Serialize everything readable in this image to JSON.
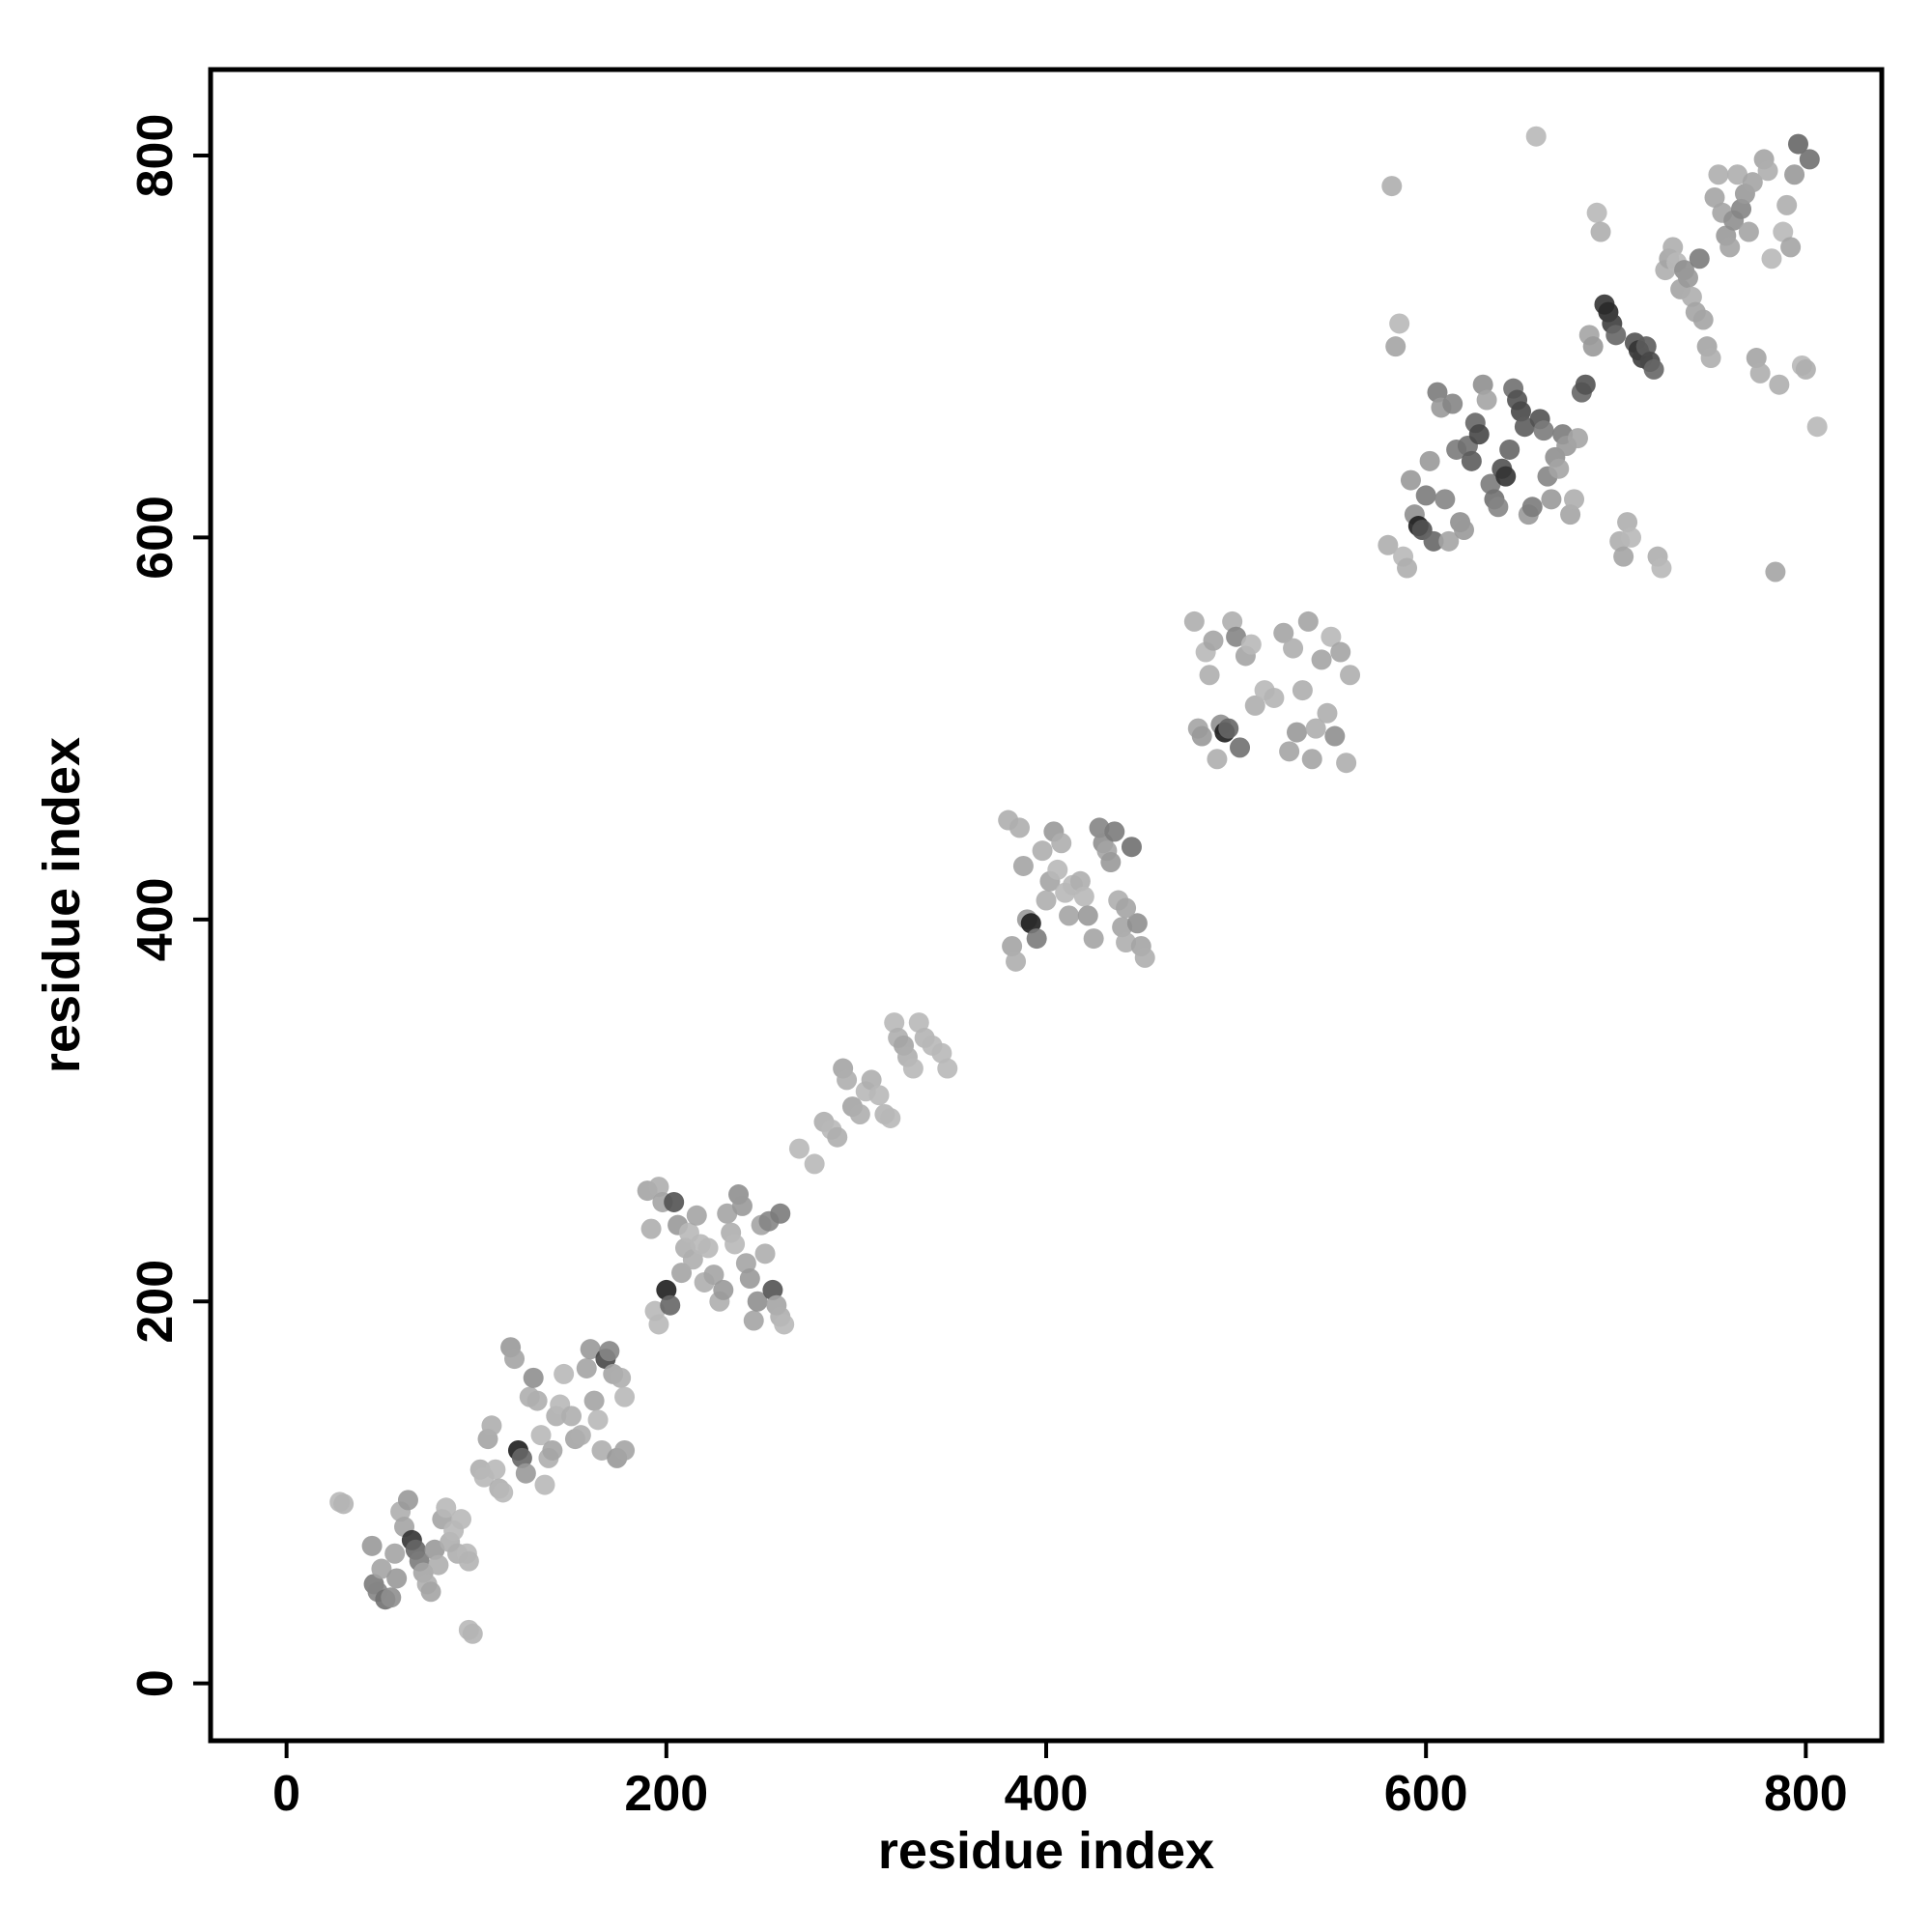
{
  "chart_data": {
    "type": "scatter",
    "title": "",
    "xlabel": "residue index",
    "ylabel": "residue index",
    "xlim": [
      -40,
      840
    ],
    "ylim": [
      -30,
      845
    ],
    "x_ticks": [
      0,
      200,
      400,
      600,
      800
    ],
    "y_ticks": [
      0,
      200,
      400,
      600,
      800
    ],
    "x_tick_labels": [
      "0",
      "200",
      "400",
      "600",
      "800"
    ],
    "y_tick_labels": [
      "0",
      "200",
      "400",
      "600",
      "800"
    ],
    "grid": false,
    "legend": "none",
    "marker": "filled-circle",
    "shade_scale": "grayscale; lighter = lower value, darker = higher value",
    "points": [
      [
        28,
        95,
        0.2
      ],
      [
        30,
        94,
        0.22
      ],
      [
        45,
        72,
        0.35
      ],
      [
        46,
        52,
        0.5
      ],
      [
        48,
        48,
        0.45
      ],
      [
        50,
        60,
        0.3
      ],
      [
        52,
        44,
        0.55
      ],
      [
        55,
        45,
        0.4
      ],
      [
        57,
        68,
        0.3
      ],
      [
        58,
        55,
        0.35
      ],
      [
        60,
        90,
        0.25
      ],
      [
        62,
        82,
        0.3
      ],
      [
        64,
        96,
        0.35
      ],
      [
        66,
        75,
        0.85
      ],
      [
        68,
        70,
        0.6
      ],
      [
        70,
        64,
        0.5
      ],
      [
        72,
        58,
        0.3
      ],
      [
        74,
        52,
        0.25
      ],
      [
        76,
        48,
        0.3
      ],
      [
        78,
        70,
        0.35
      ],
      [
        80,
        62,
        0.25
      ],
      [
        82,
        86,
        0.3
      ],
      [
        84,
        92,
        0.2
      ],
      [
        86,
        74,
        0.25
      ],
      [
        88,
        80,
        0.2
      ],
      [
        90,
        68,
        0.25
      ],
      [
        92,
        86,
        0.2
      ],
      [
        95,
        68,
        0.2
      ],
      [
        96,
        64,
        0.22
      ],
      [
        96,
        28,
        0.2
      ],
      [
        98,
        26,
        0.22
      ],
      [
        102,
        112,
        0.25
      ],
      [
        104,
        108,
        0.2
      ],
      [
        106,
        128,
        0.3
      ],
      [
        108,
        135,
        0.25
      ],
      [
        110,
        112,
        0.2
      ],
      [
        112,
        102,
        0.25
      ],
      [
        114,
        100,
        0.2
      ],
      [
        118,
        176,
        0.35
      ],
      [
        120,
        170,
        0.3
      ],
      [
        122,
        122,
        0.95
      ],
      [
        124,
        118,
        0.6
      ],
      [
        126,
        110,
        0.35
      ],
      [
        128,
        150,
        0.25
      ],
      [
        130,
        160,
        0.4
      ],
      [
        132,
        148,
        0.25
      ],
      [
        134,
        130,
        0.2
      ],
      [
        136,
        104,
        0.2
      ],
      [
        138,
        118,
        0.25
      ],
      [
        140,
        122,
        0.3
      ],
      [
        142,
        140,
        0.25
      ],
      [
        144,
        146,
        0.2
      ],
      [
        146,
        162,
        0.2
      ],
      [
        150,
        140,
        0.25
      ],
      [
        152,
        128,
        0.3
      ],
      [
        155,
        130,
        0.25
      ],
      [
        158,
        165,
        0.3
      ],
      [
        160,
        175,
        0.35
      ],
      [
        162,
        148,
        0.3
      ],
      [
        164,
        138,
        0.2
      ],
      [
        166,
        122,
        0.25
      ],
      [
        168,
        170,
        0.75
      ],
      [
        170,
        174,
        0.45
      ],
      [
        172,
        162,
        0.3
      ],
      [
        174,
        118,
        0.35
      ],
      [
        176,
        160,
        0.25
      ],
      [
        178,
        150,
        0.2
      ],
      [
        178,
        122,
        0.3
      ],
      [
        190,
        258,
        0.3
      ],
      [
        192,
        238,
        0.25
      ],
      [
        194,
        195,
        0.2
      ],
      [
        196,
        260,
        0.25
      ],
      [
        198,
        252,
        0.3
      ],
      [
        200,
        206,
        0.95
      ],
      [
        202,
        198,
        0.6
      ],
      [
        204,
        252,
        0.7
      ],
      [
        206,
        240,
        0.35
      ],
      [
        208,
        215,
        0.3
      ],
      [
        210,
        228,
        0.25
      ],
      [
        212,
        236,
        0.2
      ],
      [
        214,
        222,
        0.25
      ],
      [
        216,
        245,
        0.3
      ],
      [
        218,
        230,
        0.2
      ],
      [
        220,
        210,
        0.25
      ],
      [
        222,
        228,
        0.2
      ],
      [
        225,
        214,
        0.3
      ],
      [
        228,
        200,
        0.25
      ],
      [
        230,
        206,
        0.35
      ],
      [
        232,
        246,
        0.3
      ],
      [
        234,
        236,
        0.25
      ],
      [
        236,
        230,
        0.2
      ],
      [
        238,
        256,
        0.4
      ],
      [
        240,
        250,
        0.35
      ],
      [
        242,
        220,
        0.3
      ],
      [
        244,
        212,
        0.35
      ],
      [
        246,
        190,
        0.3
      ],
      [
        248,
        200,
        0.4
      ],
      [
        250,
        240,
        0.3
      ],
      [
        252,
        225,
        0.25
      ],
      [
        254,
        242,
        0.45
      ],
      [
        256,
        206,
        0.7
      ],
      [
        258,
        198,
        0.3
      ],
      [
        260,
        192,
        0.25
      ],
      [
        262,
        188,
        0.2
      ],
      [
        260,
        246,
        0.5
      ],
      [
        196,
        188,
        0.2
      ],
      [
        270,
        280,
        0.2
      ],
      [
        278,
        272,
        0.2
      ],
      [
        283,
        294,
        0.25
      ],
      [
        287,
        290,
        0.2
      ],
      [
        290,
        286,
        0.25
      ],
      [
        293,
        322,
        0.3
      ],
      [
        295,
        316,
        0.25
      ],
      [
        298,
        302,
        0.3
      ],
      [
        302,
        298,
        0.25
      ],
      [
        305,
        310,
        0.2
      ],
      [
        308,
        316,
        0.25
      ],
      [
        312,
        308,
        0.2
      ],
      [
        315,
        298,
        0.22
      ],
      [
        318,
        296,
        0.2
      ],
      [
        320,
        346,
        0.2
      ],
      [
        322,
        338,
        0.25
      ],
      [
        325,
        334,
        0.3
      ],
      [
        327,
        328,
        0.25
      ],
      [
        330,
        322,
        0.2
      ],
      [
        333,
        346,
        0.2
      ],
      [
        336,
        338,
        0.22
      ],
      [
        340,
        334,
        0.2
      ],
      [
        345,
        330,
        0.2
      ],
      [
        348,
        322,
        0.2
      ],
      [
        380,
        452,
        0.25
      ],
      [
        382,
        386,
        0.3
      ],
      [
        384,
        378,
        0.25
      ],
      [
        386,
        448,
        0.25
      ],
      [
        388,
        428,
        0.3
      ],
      [
        390,
        400,
        0.35
      ],
      [
        392,
        398,
        0.95
      ],
      [
        395,
        390,
        0.5
      ],
      [
        398,
        436,
        0.25
      ],
      [
        400,
        410,
        0.25
      ],
      [
        402,
        420,
        0.3
      ],
      [
        404,
        446,
        0.35
      ],
      [
        406,
        426,
        0.2
      ],
      [
        408,
        440,
        0.25
      ],
      [
        410,
        414,
        0.2
      ],
      [
        412,
        402,
        0.3
      ],
      [
        414,
        418,
        0.2
      ],
      [
        418,
        420,
        0.25
      ],
      [
        420,
        412,
        0.2
      ],
      [
        422,
        402,
        0.35
      ],
      [
        425,
        390,
        0.3
      ],
      [
        428,
        448,
        0.45
      ],
      [
        430,
        440,
        0.4
      ],
      [
        432,
        436,
        0.3
      ],
      [
        434,
        430,
        0.35
      ],
      [
        436,
        446,
        0.5
      ],
      [
        438,
        410,
        0.25
      ],
      [
        440,
        396,
        0.3
      ],
      [
        442,
        388,
        0.25
      ],
      [
        445,
        438,
        0.55
      ],
      [
        448,
        398,
        0.4
      ],
      [
        450,
        386,
        0.3
      ],
      [
        452,
        380,
        0.25
      ],
      [
        442,
        406,
        0.3
      ],
      [
        478,
        556,
        0.25
      ],
      [
        480,
        500,
        0.3
      ],
      [
        482,
        496,
        0.35
      ],
      [
        484,
        540,
        0.2
      ],
      [
        486,
        528,
        0.25
      ],
      [
        488,
        546,
        0.3
      ],
      [
        490,
        484,
        0.25
      ],
      [
        492,
        502,
        0.4
      ],
      [
        494,
        498,
        0.95
      ],
      [
        496,
        500,
        0.6
      ],
      [
        498,
        556,
        0.25
      ],
      [
        500,
        548,
        0.45
      ],
      [
        502,
        490,
        0.55
      ],
      [
        505,
        538,
        0.3
      ],
      [
        508,
        544,
        0.2
      ],
      [
        510,
        512,
        0.25
      ],
      [
        515,
        520,
        0.2
      ],
      [
        520,
        516,
        0.22
      ],
      [
        525,
        550,
        0.3
      ],
      [
        528,
        488,
        0.3
      ],
      [
        530,
        542,
        0.25
      ],
      [
        532,
        498,
        0.35
      ],
      [
        535,
        520,
        0.25
      ],
      [
        538,
        556,
        0.3
      ],
      [
        540,
        484,
        0.3
      ],
      [
        542,
        500,
        0.25
      ],
      [
        545,
        536,
        0.3
      ],
      [
        548,
        508,
        0.25
      ],
      [
        550,
        548,
        0.2
      ],
      [
        552,
        496,
        0.4
      ],
      [
        555,
        540,
        0.3
      ],
      [
        558,
        482,
        0.25
      ],
      [
        560,
        528,
        0.25
      ],
      [
        580,
        596,
        0.25
      ],
      [
        582,
        784,
        0.25
      ],
      [
        584,
        700,
        0.3
      ],
      [
        586,
        712,
        0.2
      ],
      [
        588,
        590,
        0.2
      ],
      [
        590,
        584,
        0.25
      ],
      [
        592,
        630,
        0.35
      ],
      [
        594,
        612,
        0.4
      ],
      [
        596,
        606,
        0.95
      ],
      [
        598,
        604,
        0.7
      ],
      [
        600,
        622,
        0.5
      ],
      [
        602,
        640,
        0.35
      ],
      [
        604,
        598,
        0.6
      ],
      [
        606,
        676,
        0.5
      ],
      [
        608,
        668,
        0.35
      ],
      [
        610,
        620,
        0.45
      ],
      [
        612,
        598,
        0.3
      ],
      [
        614,
        670,
        0.45
      ],
      [
        616,
        646,
        0.5
      ],
      [
        618,
        608,
        0.4
      ],
      [
        620,
        604,
        0.35
      ],
      [
        622,
        648,
        0.55
      ],
      [
        624,
        640,
        0.65
      ],
      [
        626,
        660,
        0.6
      ],
      [
        628,
        654,
        0.75
      ],
      [
        630,
        680,
        0.4
      ],
      [
        632,
        672,
        0.3
      ],
      [
        634,
        628,
        0.5
      ],
      [
        636,
        620,
        0.55
      ],
      [
        638,
        616,
        0.45
      ],
      [
        640,
        636,
        0.7
      ],
      [
        642,
        632,
        0.85
      ],
      [
        644,
        646,
        0.6
      ],
      [
        646,
        678,
        0.55
      ],
      [
        648,
        672,
        0.7
      ],
      [
        650,
        666,
        0.75
      ],
      [
        652,
        658,
        0.65
      ],
      [
        654,
        612,
        0.35
      ],
      [
        656,
        616,
        0.5
      ],
      [
        658,
        810,
        0.2
      ],
      [
        660,
        662,
        0.7
      ],
      [
        662,
        656,
        0.5
      ],
      [
        664,
        632,
        0.45
      ],
      [
        666,
        620,
        0.35
      ],
      [
        668,
        642,
        0.4
      ],
      [
        670,
        636,
        0.3
      ],
      [
        672,
        654,
        0.5
      ],
      [
        674,
        648,
        0.35
      ],
      [
        676,
        612,
        0.3
      ],
      [
        678,
        620,
        0.25
      ],
      [
        680,
        652,
        0.3
      ],
      [
        682,
        676,
        0.6
      ],
      [
        684,
        680,
        0.7
      ],
      [
        686,
        706,
        0.3
      ],
      [
        688,
        700,
        0.35
      ],
      [
        690,
        770,
        0.2
      ],
      [
        692,
        760,
        0.25
      ],
      [
        694,
        722,
        0.85
      ],
      [
        696,
        718,
        0.9
      ],
      [
        698,
        712,
        0.8
      ],
      [
        700,
        706,
        0.6
      ],
      [
        702,
        598,
        0.25
      ],
      [
        704,
        590,
        0.3
      ],
      [
        706,
        608,
        0.25
      ],
      [
        708,
        600,
        0.2
      ],
      [
        710,
        702,
        0.7
      ],
      [
        712,
        698,
        0.85
      ],
      [
        714,
        694,
        0.8
      ],
      [
        716,
        700,
        0.65
      ],
      [
        718,
        692,
        0.75
      ],
      [
        720,
        688,
        0.6
      ],
      [
        722,
        590,
        0.25
      ],
      [
        724,
        584,
        0.2
      ],
      [
        726,
        740,
        0.25
      ],
      [
        728,
        746,
        0.3
      ],
      [
        730,
        752,
        0.25
      ],
      [
        732,
        744,
        0.2
      ],
      [
        734,
        730,
        0.3
      ],
      [
        736,
        740,
        0.4
      ],
      [
        738,
        736,
        0.35
      ],
      [
        740,
        726,
        0.25
      ],
      [
        742,
        718,
        0.3
      ],
      [
        744,
        746,
        0.5
      ],
      [
        746,
        714,
        0.3
      ],
      [
        748,
        700,
        0.3
      ],
      [
        750,
        694,
        0.25
      ],
      [
        752,
        778,
        0.3
      ],
      [
        754,
        790,
        0.25
      ],
      [
        756,
        770,
        0.3
      ],
      [
        758,
        758,
        0.35
      ],
      [
        760,
        752,
        0.3
      ],
      [
        762,
        766,
        0.4
      ],
      [
        764,
        790,
        0.25
      ],
      [
        766,
        772,
        0.45
      ],
      [
        768,
        780,
        0.35
      ],
      [
        770,
        760,
        0.3
      ],
      [
        772,
        786,
        0.3
      ],
      [
        774,
        694,
        0.3
      ],
      [
        776,
        686,
        0.25
      ],
      [
        778,
        798,
        0.3
      ],
      [
        780,
        792,
        0.25
      ],
      [
        782,
        746,
        0.2
      ],
      [
        784,
        582,
        0.3
      ],
      [
        786,
        680,
        0.25
      ],
      [
        788,
        760,
        0.2
      ],
      [
        790,
        774,
        0.25
      ],
      [
        792,
        752,
        0.3
      ],
      [
        794,
        790,
        0.35
      ],
      [
        796,
        806,
        0.6
      ],
      [
        798,
        690,
        0.2
      ],
      [
        800,
        688,
        0.25
      ],
      [
        802,
        798,
        0.55
      ],
      [
        806,
        658,
        0.2
      ]
    ]
  }
}
